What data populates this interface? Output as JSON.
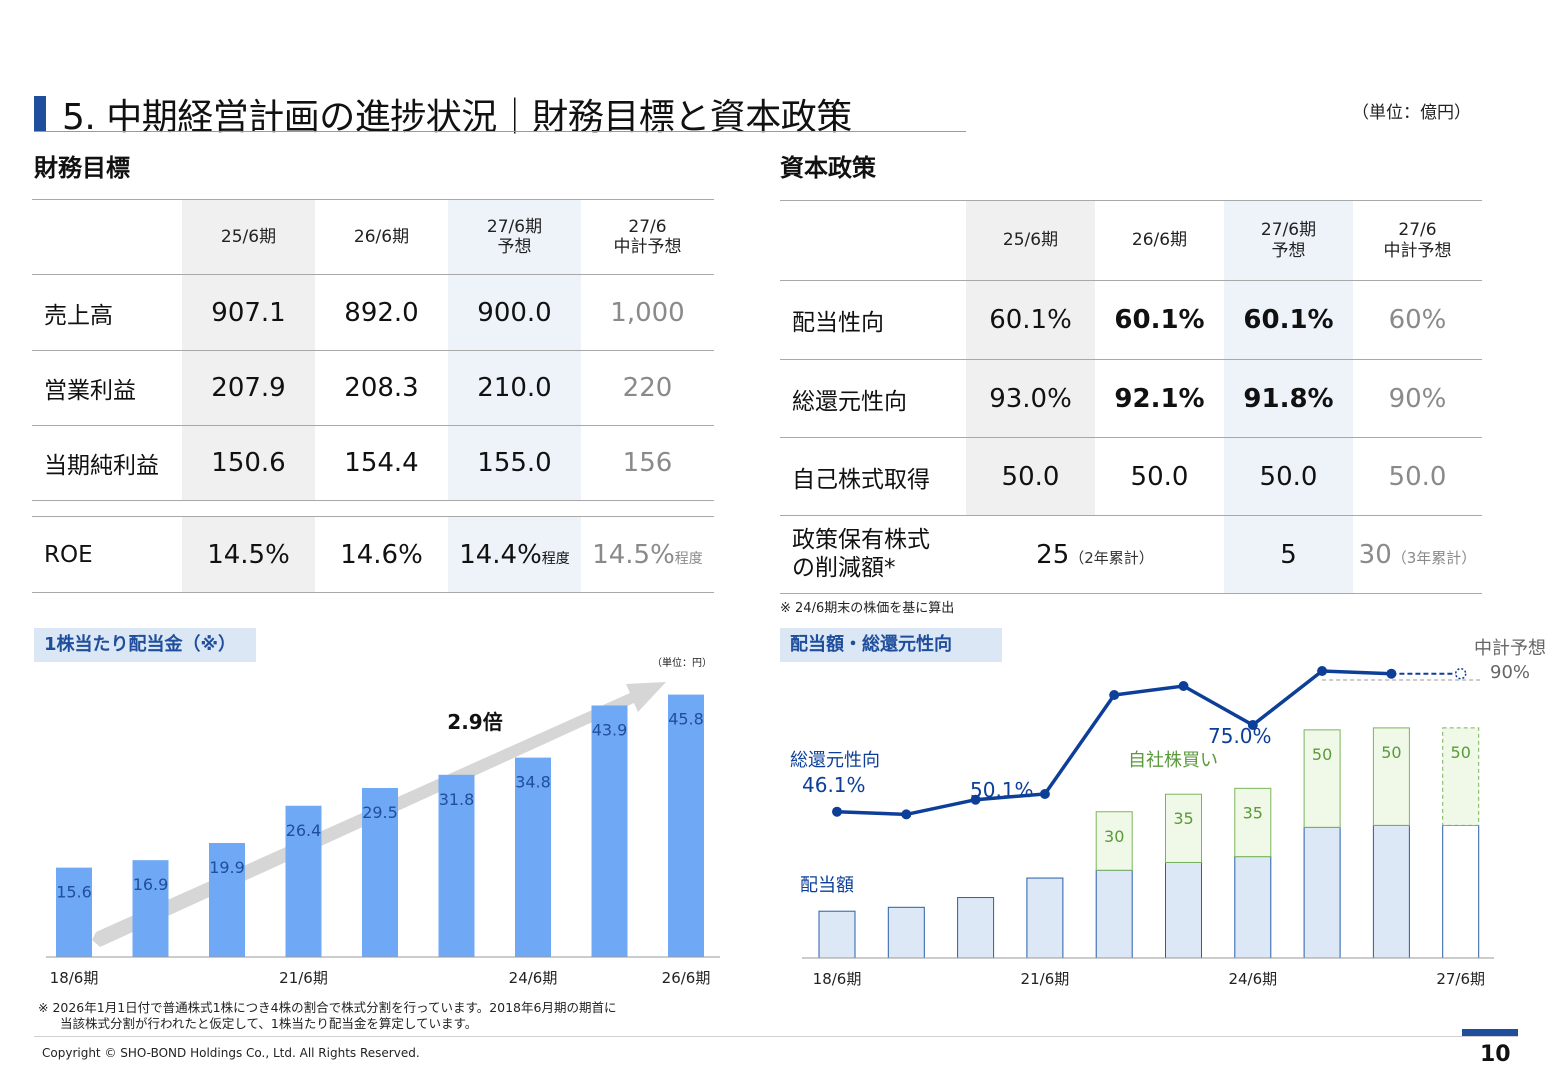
{
  "header": {
    "title": "5. 中期経営計画の進捗状況｜財務目標と資本政策",
    "unit": "（単位：億円）"
  },
  "financial": {
    "heading": "財務目標",
    "columns": [
      "25/6期",
      "26/6期",
      "27/6期\n予想",
      "27/6\n中計予想"
    ],
    "rows": [
      {
        "label": "売上高",
        "values": [
          "907.1",
          "892.0",
          "900.0",
          "1,000"
        ]
      },
      {
        "label": "営業利益",
        "values": [
          "207.9",
          "208.3",
          "210.0",
          "220"
        ]
      },
      {
        "label": "当期純利益",
        "values": [
          "150.6",
          "154.4",
          "155.0",
          "156"
        ]
      }
    ],
    "roe": {
      "label": "ROE",
      "values": [
        "14.5%",
        "14.6%",
        "14.4%",
        "14.5%"
      ],
      "suffix": "程度"
    }
  },
  "capital": {
    "heading": "資本政策",
    "columns": [
      "25/6期",
      "26/6期",
      "27/6期\n予想",
      "27/6\n中計予想"
    ],
    "rows": [
      {
        "label": "配当性向",
        "values": [
          "60.1%",
          "60.1%",
          "60.1%",
          "60%"
        ]
      },
      {
        "label": "総還元性向",
        "values": [
          "93.0%",
          "92.1%",
          "91.8%",
          "90%"
        ]
      },
      {
        "label": "自己株式取得",
        "values": [
          "50.0",
          "50.0",
          "50.0",
          "50.0"
        ]
      }
    ],
    "reduction": {
      "label_line1": "政策保有株式",
      "label_line2": "の削減額*",
      "value_2yr": "25",
      "suffix_2yr": "（2年累計）",
      "value_27": "5",
      "value_3yr": "30",
      "suffix_3yr": "（3年累計）"
    },
    "note": "※ 24/6期末の株価を基に算出"
  },
  "dps_chart_labels": {
    "tag": "1株当たり配当金（※）",
    "unit": "（単位：円）",
    "growth": "2.9倍"
  },
  "payout_chart_labels": {
    "tag": "配当額・総還元性向",
    "line_label": "総還元性向",
    "bar_label": "配当額",
    "buyback_label": "自社株買い",
    "target_label": "中計予想",
    "target_value": "90%",
    "pct_labels": [
      "46.1%",
      "50.1%",
      "75.0%"
    ]
  },
  "chart_data": [
    {
      "type": "bar",
      "title": "1株当たり配当金（※）",
      "categories": [
        "18/6期",
        "19/6期",
        "20/6期",
        "21/6期",
        "22/6期",
        "23/6期",
        "24/6期",
        "25/6期",
        "26/6期"
      ],
      "tick_labels": [
        "18/6期",
        "21/6期",
        "24/6期",
        "26/6期"
      ],
      "values": [
        15.6,
        16.9,
        19.9,
        26.4,
        29.5,
        31.8,
        34.8,
        43.9,
        45.8
      ],
      "value_labels": [
        "15.6",
        "16.9",
        "19.9",
        "26.4",
        "29.5",
        "31.8",
        "34.8",
        "43.9",
        "45.8"
      ],
      "ylim": [
        0,
        48
      ],
      "color": "#6fa8f5",
      "annotation": "2.9倍"
    },
    {
      "type": "bar",
      "title": "配当額・総還元性向",
      "categories": [
        "18/6期",
        "19/6期",
        "20/6期",
        "21/6期",
        "22/6期",
        "23/6期",
        "24/6期",
        "25/6期",
        "26/6期",
        "27/6期"
      ],
      "tick_labels": [
        "18/6期",
        "21/6期",
        "24/6期",
        "27/6期"
      ],
      "series": [
        {
          "name": "配当額",
          "values": [
            24,
            26,
            31,
            41,
            45,
            49,
            52,
            67,
            68,
            68
          ]
        },
        {
          "name": "自社株買い",
          "values": [
            0,
            0,
            0,
            0,
            30,
            35,
            35,
            50,
            50,
            50
          ]
        },
        {
          "name": "総還元性向",
          "values": [
            46.1,
            45.2,
            50.1,
            52.0,
            85.0,
            88.0,
            75.0,
            93.0,
            92.1,
            91.8
          ]
        }
      ],
      "buyback_labels": [
        "30",
        "35",
        "35",
        "50",
        "50",
        "50"
      ],
      "target": 90,
      "ylim": [
        0,
        130
      ],
      "colors": {
        "dividend": "#dce8f5",
        "buyback": "#f0f8e8",
        "buyback_edge": "#7ab55c",
        "line": "#0d3f99"
      }
    }
  ],
  "footer": {
    "note_line1": "※ 2026年1月1日付で普通株式1株につき4株の割合で株式分割を行っています。2018年6月期の期首に",
    "note_line2": "当該株式分割が行われたと仮定して、1株当たり配当金を算定しています。",
    "copyright": "Copyright © SHO-BOND Holdings Co., Ltd. All Rights Reserved.",
    "page": "10"
  }
}
